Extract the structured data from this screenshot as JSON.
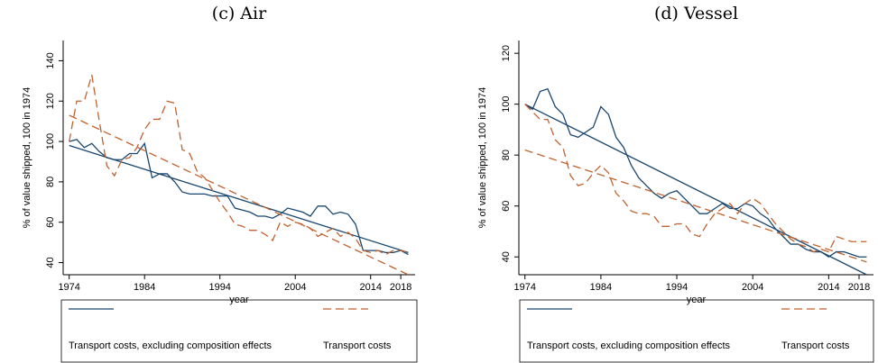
{
  "chart_data": [
    {
      "type": "line",
      "title": "(c) Air",
      "x_label": "year",
      "y_label": "% of value shipped, 100 in 1974",
      "x": [
        1974,
        1975,
        1976,
        1977,
        1978,
        1979,
        1980,
        1981,
        1982,
        1983,
        1984,
        1985,
        1986,
        1987,
        1988,
        1989,
        1990,
        1991,
        1992,
        1993,
        1994,
        1995,
        1996,
        1997,
        1998,
        1999,
        2000,
        2001,
        2002,
        2003,
        2004,
        2005,
        2006,
        2007,
        2008,
        2009,
        2010,
        2011,
        2012,
        2013,
        2014,
        2015,
        2016,
        2017,
        2018,
        2019
      ],
      "xlim": [
        1973.2,
        2019.9
      ],
      "xticks": [
        1974,
        1984,
        1994,
        2004,
        2014,
        2018
      ],
      "ylim": [
        34,
        150
      ],
      "yticks": [
        40,
        60,
        80,
        100,
        120,
        140
      ],
      "legend_position": "bottom",
      "series": [
        {
          "name": "Transport costs, excluding composition effects",
          "color": "#1a476f",
          "dashed": false,
          "values": [
            100,
            101,
            97,
            99,
            95,
            92,
            91,
            91,
            94,
            94,
            99,
            82,
            84,
            84,
            80,
            75,
            74,
            74,
            74,
            73,
            73,
            73,
            67,
            66,
            65,
            63,
            63,
            62,
            64,
            67,
            66,
            65,
            63,
            68,
            68,
            64,
            65,
            64,
            59,
            46,
            46,
            46,
            45,
            45,
            46,
            44
          ],
          "trend": [
            98,
            45
          ]
        },
        {
          "name": "Transport costs",
          "color": "#c0622f",
          "dashed": true,
          "values": [
            100,
            120,
            120,
            133,
            110,
            88,
            83,
            91,
            92,
            97,
            106,
            111,
            111,
            120,
            119,
            96,
            94,
            85,
            82,
            76,
            70,
            65,
            59,
            58,
            56,
            56,
            54,
            51,
            60,
            58,
            60,
            59,
            57,
            53,
            55,
            57,
            53,
            55,
            52,
            46,
            45,
            46,
            44,
            46,
            46,
            45
          ],
          "trend": [
            113,
            34
          ]
        }
      ]
    },
    {
      "type": "line",
      "title": "(d) Vessel",
      "x_label": "year",
      "y_label": "% of value shipped, 100 in 1974",
      "x": [
        1974,
        1975,
        1976,
        1977,
        1978,
        1979,
        1980,
        1981,
        1982,
        1983,
        1984,
        1985,
        1986,
        1987,
        1988,
        1989,
        1990,
        1991,
        1992,
        1993,
        1994,
        1995,
        1996,
        1997,
        1998,
        1999,
        2000,
        2001,
        2002,
        2003,
        2004,
        2005,
        2006,
        2007,
        2008,
        2009,
        2010,
        2011,
        2012,
        2013,
        2014,
        2015,
        2016,
        2017,
        2018,
        2019
      ],
      "xlim": [
        1973.2,
        2019.9
      ],
      "xticks": [
        1974,
        1984,
        1994,
        2004,
        2014,
        2018
      ],
      "ylim": [
        33,
        125
      ],
      "yticks": [
        40,
        60,
        80,
        100,
        120
      ],
      "legend_position": "bottom",
      "series": [
        {
          "name": "Transport costs, excluding composition effects",
          "color": "#1a476f",
          "dashed": false,
          "values": [
            100,
            98,
            105,
            106,
            99,
            96,
            88,
            87,
            89,
            91,
            99,
            96,
            87,
            83,
            76,
            71,
            68,
            65,
            63,
            65,
            66,
            63,
            60,
            57,
            57,
            59,
            61,
            59,
            59,
            61,
            60,
            57,
            55,
            51,
            48,
            45,
            45,
            43,
            42,
            42,
            40,
            42,
            42,
            41,
            40,
            40
          ],
          "trend": [
            100,
            33
          ]
        },
        {
          "name": "Transport costs",
          "color": "#c0622f",
          "dashed": true,
          "values": [
            100,
            97,
            94,
            94,
            86,
            83,
            72,
            68,
            69,
            73,
            76,
            73,
            65,
            62,
            58,
            57,
            57,
            56,
            52,
            52,
            53,
            53,
            49,
            48,
            53,
            57,
            59,
            61,
            57,
            61,
            63,
            61,
            57,
            53,
            50,
            47,
            45,
            44,
            42,
            43,
            42,
            48,
            47,
            46,
            46,
            46
          ],
          "trend": [
            82,
            38
          ]
        }
      ]
    }
  ]
}
